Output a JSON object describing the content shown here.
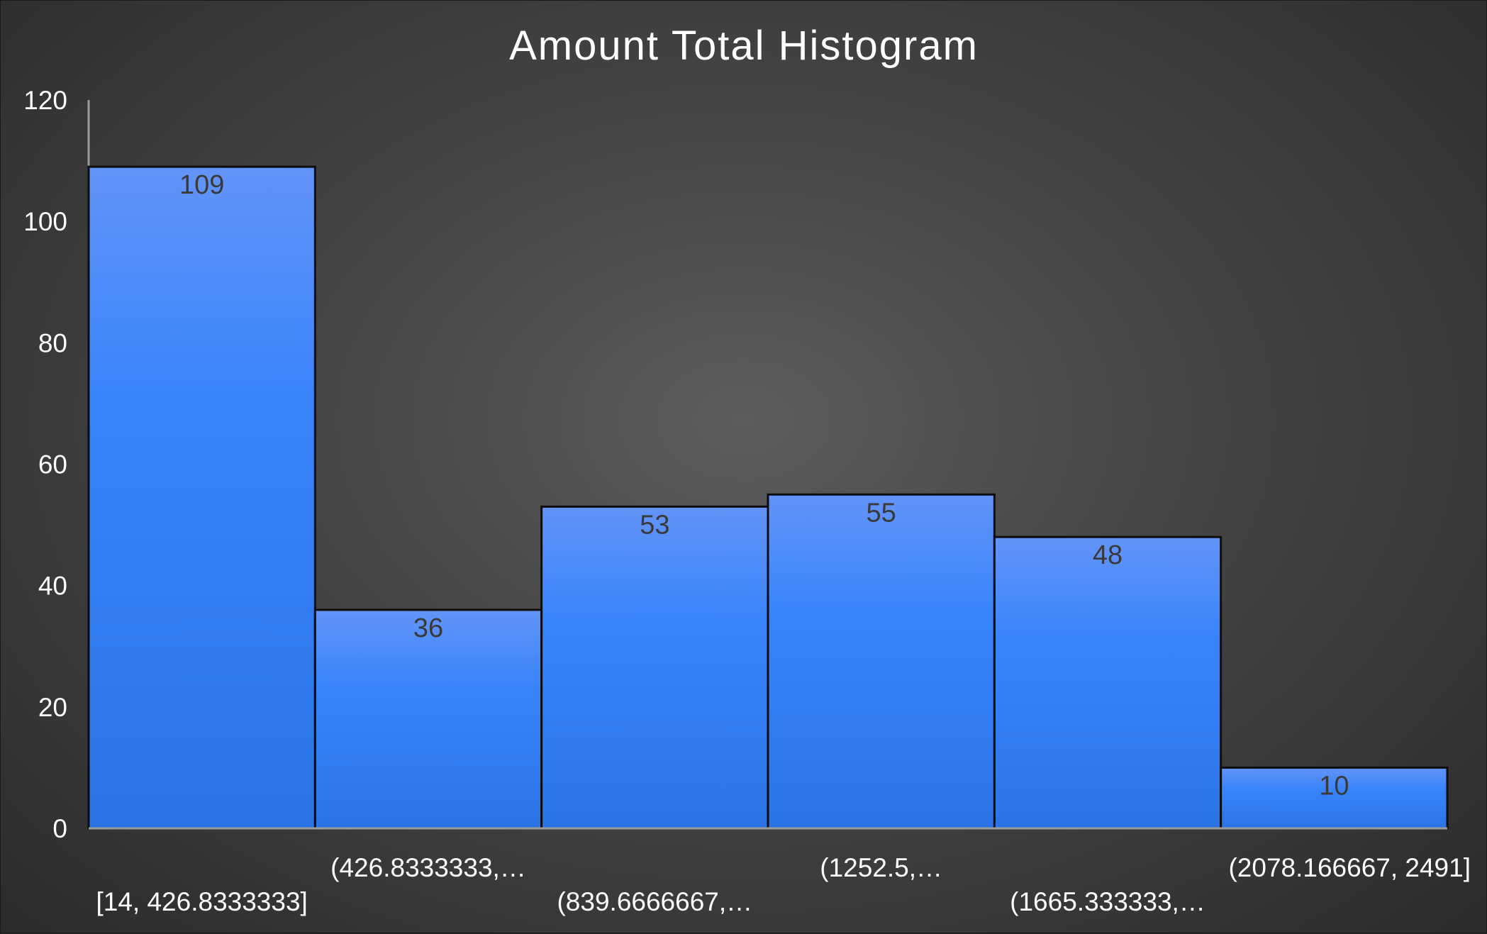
{
  "chart_data": {
    "type": "bar",
    "title": "Amount Total Histogram",
    "xlabel": "",
    "ylabel": "",
    "categories": [
      "[14, 426.8333333]",
      "(426.8333333,…",
      "(839.6666667,…",
      "(1252.5,…",
      "(1665.333333,…",
      "(2078.166667, 2491]"
    ],
    "values": [
      109,
      36,
      53,
      55,
      48,
      10
    ],
    "ylim": [
      0,
      120
    ],
    "yticks": [
      0,
      20,
      40,
      60,
      80,
      100,
      120
    ],
    "grid": false,
    "legend": "none",
    "colors": {
      "bar_top": "#6394f8",
      "bar_mid": "#3984fb",
      "bar_bottom": "#2a74e6",
      "background_center": "#5c5c5c",
      "background_edge": "#2b2b2b",
      "text": "#ffffff",
      "data_label": "#3a3a3a"
    }
  }
}
